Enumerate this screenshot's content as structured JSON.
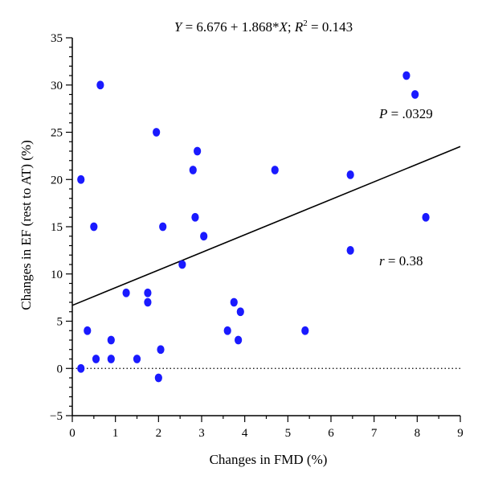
{
  "chart_data": {
    "type": "scatter",
    "title": "Y = 6.676 + 1.868*X; R² = 0.143",
    "title_parts": {
      "y_var": "Y",
      "equation": " = 6.676 + 1.868*",
      "x_var": "X",
      "sep": "; ",
      "r_var": "R",
      "r_sup": "2",
      "r_rest": " = 0.143"
    },
    "xlabel": "Changes in FMD (%)",
    "ylabel": "Changes in EF (rest to AT) (%)",
    "xlim": [
      0,
      9
    ],
    "ylim": [
      -5,
      35
    ],
    "xticks": [
      "0",
      "1",
      "2",
      "3",
      "4",
      "5",
      "6",
      "7",
      "8",
      "9"
    ],
    "yticks": [
      "−5",
      "0",
      "5",
      "10",
      "15",
      "20",
      "25",
      "30",
      "35"
    ],
    "point_color": "#1a1aff",
    "x": [
      0.2,
      0.2,
      0.35,
      0.5,
      0.55,
      0.65,
      0.9,
      0.9,
      1.25,
      1.5,
      1.75,
      1.75,
      1.95,
      2.0,
      2.05,
      2.1,
      2.55,
      2.8,
      2.85,
      2.9,
      3.05,
      3.6,
      3.75,
      3.85,
      3.9,
      4.7,
      5.4,
      6.45,
      6.45,
      7.75,
      7.95,
      8.2
    ],
    "y": [
      20,
      0,
      4,
      15,
      1,
      30,
      3,
      1,
      8,
      1,
      8,
      7,
      25,
      -1,
      2,
      15,
      11,
      21,
      16,
      23,
      14,
      4,
      7,
      3,
      6,
      21,
      4,
      20.5,
      12.5,
      31,
      29,
      16
    ],
    "regression": {
      "intercept": 6.676,
      "slope": 1.868
    },
    "reference_line_y": 0,
    "annotations": {
      "p_var": "P",
      "p_rest": " = .0329",
      "r_var": "r",
      "r_rest": " = 0.38"
    },
    "grid": false,
    "legend": "none"
  }
}
